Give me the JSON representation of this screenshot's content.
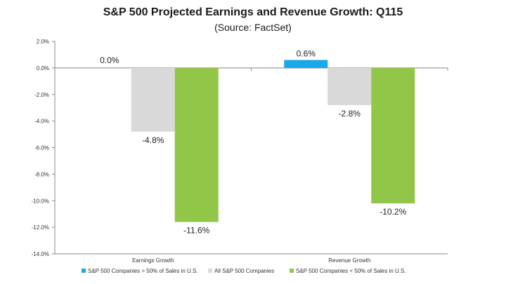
{
  "chart_data": {
    "type": "bar",
    "title": "S&P 500 Projected Earnings and Revenue Growth: Q115",
    "subtitle": "(Source: FactSet)",
    "categories": [
      "Earnings Growth",
      "Revenue Growth"
    ],
    "series": [
      {
        "name": "S&P 500 Companies > 50% of Sales in U.S.",
        "values": [
          0.0,
          0.6
        ],
        "labels": [
          "0.0%",
          "0.6%"
        ],
        "color": "#1aa9e6"
      },
      {
        "name": "All S&P 500 Companies",
        "values": [
          -4.8,
          -2.8
        ],
        "labels": [
          "-4.8%",
          "-2.8%"
        ],
        "color": "#d9d9d9"
      },
      {
        "name": "S&P 500 Companies < 50% of Sales in U.S.",
        "values": [
          -11.6,
          -10.2
        ],
        "labels": [
          "-11.6%",
          "-10.2%"
        ],
        "color": "#92c648"
      }
    ],
    "ylim": [
      -14,
      2
    ],
    "yticks": [
      2,
      0,
      -2,
      -4,
      -6,
      -8,
      -10,
      -12,
      -14
    ],
    "ytick_labels": [
      "2.0%",
      "0.0%",
      "-2.0%",
      "-4.0%",
      "-6.0%",
      "-8.0%",
      "-10.0%",
      "-12.0%",
      "-14.0%"
    ],
    "grid": false,
    "legend_position": "bottom"
  }
}
